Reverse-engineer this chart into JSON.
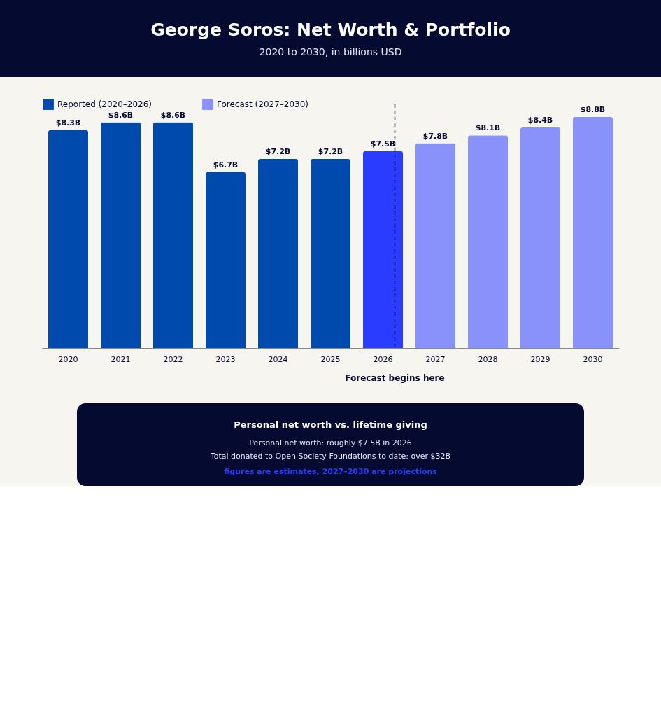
{
  "chart_data": {
    "type": "bar",
    "title": "George Soros: Net Worth & Portfolio",
    "subtitle": "2020 to 2030, in billions USD",
    "categories": [
      "2020",
      "2021",
      "2022",
      "2023",
      "2024",
      "2025",
      "2026",
      "2027",
      "2028",
      "2029",
      "2030"
    ],
    "series": [
      {
        "name": "Reported (2020–2026)",
        "color": "#004aad",
        "colors": [
          "#004aad",
          "#004aad",
          "#004aad",
          "#004aad",
          "#004aad",
          "#004aad",
          "#2a3cff",
          null,
          null,
          null,
          null
        ],
        "values": [
          8.3,
          8.6,
          8.6,
          6.7,
          7.2,
          7.2,
          7.5,
          null,
          null,
          null,
          null
        ],
        "value_labels": [
          "$8.3B",
          "$8.6B",
          "$8.6B",
          "$6.7B",
          "$7.2B",
          "$7.2B",
          "$7.5B",
          null,
          null,
          null,
          null
        ]
      },
      {
        "name": "Forecast (2027–2030)",
        "color": "#8892fa",
        "values": [
          null,
          null,
          null,
          null,
          null,
          null,
          null,
          7.8,
          8.1,
          8.4,
          8.8
        ],
        "value_labels": [
          null,
          null,
          null,
          null,
          null,
          null,
          null,
          "$7.8B",
          "$8.1B",
          "$8.4B",
          "$8.8B"
        ]
      }
    ],
    "ref_lines": [
      {
        "axis": "x",
        "value": "2026",
        "label": "Forecast begins here",
        "color": "#050a30",
        "line_style": "dashed"
      }
    ],
    "legend": "top",
    "grid": false,
    "annotations": [
      "Personal net worth vs. lifetime giving",
      "Personal net worth: roughly $7.5B in 2026",
      "Total donated to Open Society Foundations to date: over $32B",
      "figures are estimates, 2027–2030 are projections"
    ]
  }
}
